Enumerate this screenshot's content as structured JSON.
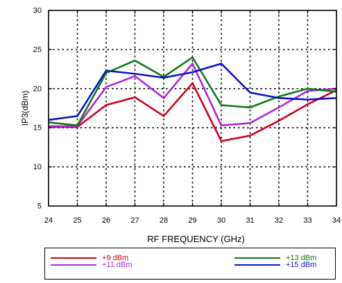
{
  "chart_data": {
    "type": "line",
    "title": "",
    "xlabel": "RF FREQUENCY (GHz)",
    "ylabel": "IP3(dBm)",
    "x": [
      24,
      25,
      26,
      27,
      28,
      29,
      30,
      31,
      32,
      33,
      34
    ],
    "xlim": [
      24,
      34
    ],
    "ylim": [
      5,
      30
    ],
    "x_ticks": [
      24,
      25,
      26,
      27,
      28,
      29,
      30,
      31,
      32,
      33,
      34
    ],
    "y_ticks": [
      5,
      10,
      15,
      20,
      25,
      30
    ],
    "grid": true,
    "legend_position": "bottom",
    "series": [
      {
        "name": "+9 dBm",
        "color": "#d0001a",
        "values": [
          15.1,
          15.1,
          17.9,
          18.9,
          16.5,
          20.7,
          13.3,
          14.0,
          15.9,
          18.0,
          19.8
        ]
      },
      {
        "name": "+11 dBm",
        "color": "#b026e0",
        "values": [
          15.2,
          15.2,
          20.2,
          21.6,
          18.8,
          23.2,
          15.3,
          15.6,
          17.6,
          19.7,
          20.0
        ]
      },
      {
        "name": "+13 dBm",
        "color": "#107a16",
        "values": [
          15.7,
          15.3,
          22.0,
          23.6,
          21.5,
          24.0,
          17.9,
          17.6,
          19.0,
          20.0,
          19.6
        ]
      },
      {
        "name": "+15 dBm",
        "color": "#0a14c8",
        "values": [
          16.0,
          16.5,
          22.3,
          21.9,
          21.4,
          22.1,
          23.2,
          19.5,
          18.8,
          18.6,
          18.8
        ]
      }
    ]
  }
}
